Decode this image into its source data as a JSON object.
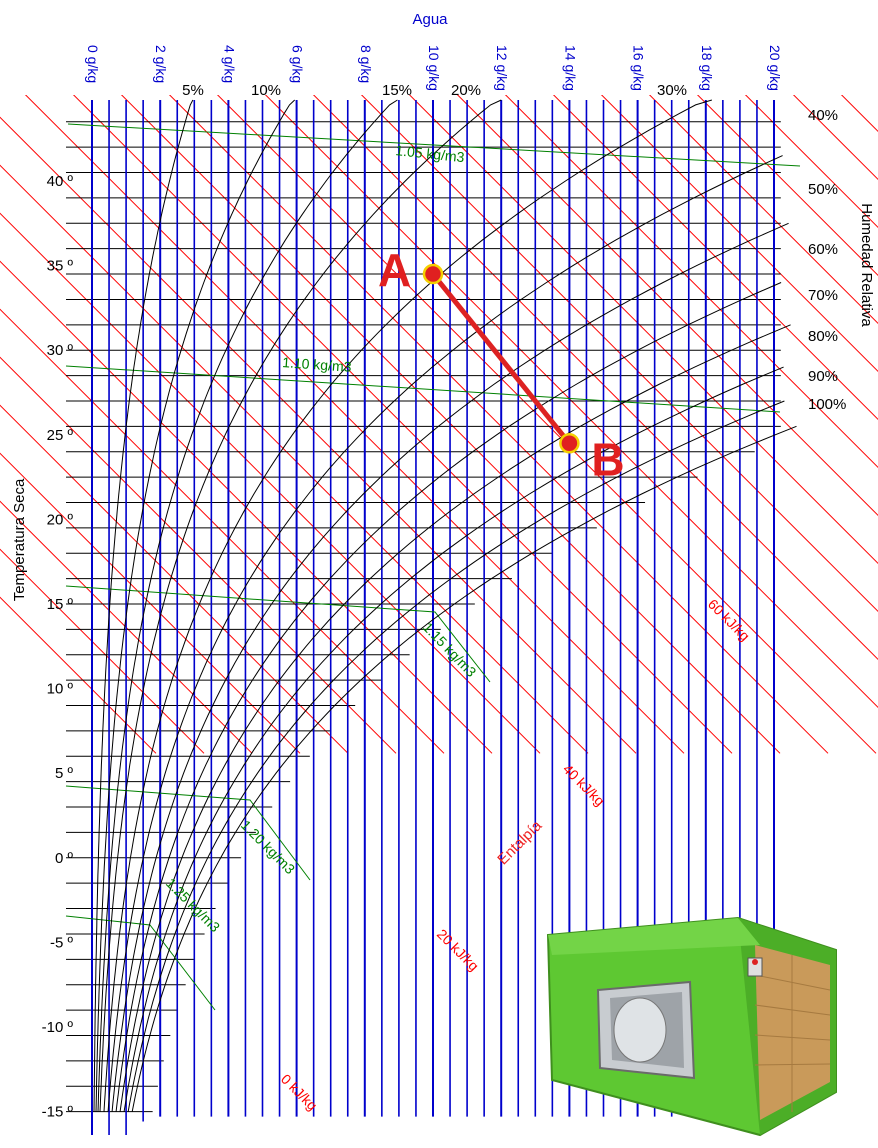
{
  "chart_data": {
    "type": "line",
    "title": "",
    "top_axis_label": "Agua",
    "left_axis_label": "Temperatura Seca",
    "right_axis_label": "Humedad Relativa",
    "enthalpy_label": "Entalpía",
    "humidity_ticks": [
      "0 g/kg",
      "2 g/kg",
      "4 g/kg",
      "6 g/kg",
      "8 g/kg",
      "10 g/kg",
      "12 g/kg",
      "14 g/kg",
      "16 g/kg",
      "18 g/kg",
      "20 g/kg"
    ],
    "humidity_values": [
      0,
      2,
      4,
      6,
      8,
      10,
      12,
      14,
      16,
      18,
      20
    ],
    "temperature_ticks": [
      "40 º",
      "35 º",
      "30 º",
      "25 º",
      "20 º",
      "15 º",
      "10 º",
      "5 º",
      "0 º",
      "-5 º",
      "-10 º",
      "-15 º"
    ],
    "temperature_values": [
      40,
      35,
      30,
      25,
      20,
      15,
      10,
      5,
      0,
      -5,
      -10,
      -15
    ],
    "rh_labels_top": [
      "5%",
      "10%",
      "15%",
      "20%",
      "30%"
    ],
    "rh_labels_right": [
      "40%",
      "50%",
      "60%",
      "70%",
      "80%",
      "90%",
      "100%"
    ],
    "rh_curves": [
      5,
      10,
      15,
      20,
      30,
      40,
      50,
      60,
      70,
      80,
      90,
      100
    ],
    "enthalpy_labels": [
      "0 kJ/kg",
      "20 kJ/kg",
      "40 kJ/kg",
      "60 kJ/kg"
    ],
    "enthalpy_values": [
      0,
      20,
      40,
      60
    ],
    "density_labels": [
      "1.05 kg/m3",
      "1.10 kg/m3",
      "1.15 kg/m3",
      "1.20 kg/m3",
      "1.25 kg/m3"
    ],
    "points": [
      {
        "label": "A",
        "humidity": 10,
        "temp": 34.5
      },
      {
        "label": "B",
        "humidity": 14,
        "temp": 24.5
      }
    ],
    "xlim": [
      0,
      20
    ],
    "ylim": [
      -15,
      44
    ],
    "colors": {
      "humidity_lines": "#0000cc",
      "temperature_lines": "#000000",
      "enthalpy_lines": "#ff0000",
      "density_lines": "#008000",
      "rh_curves": "#000000",
      "process_line": "#dd2222",
      "point_fill": "#e02020",
      "point_outline": "#f5d000",
      "unit_body": "#5ec832"
    }
  }
}
